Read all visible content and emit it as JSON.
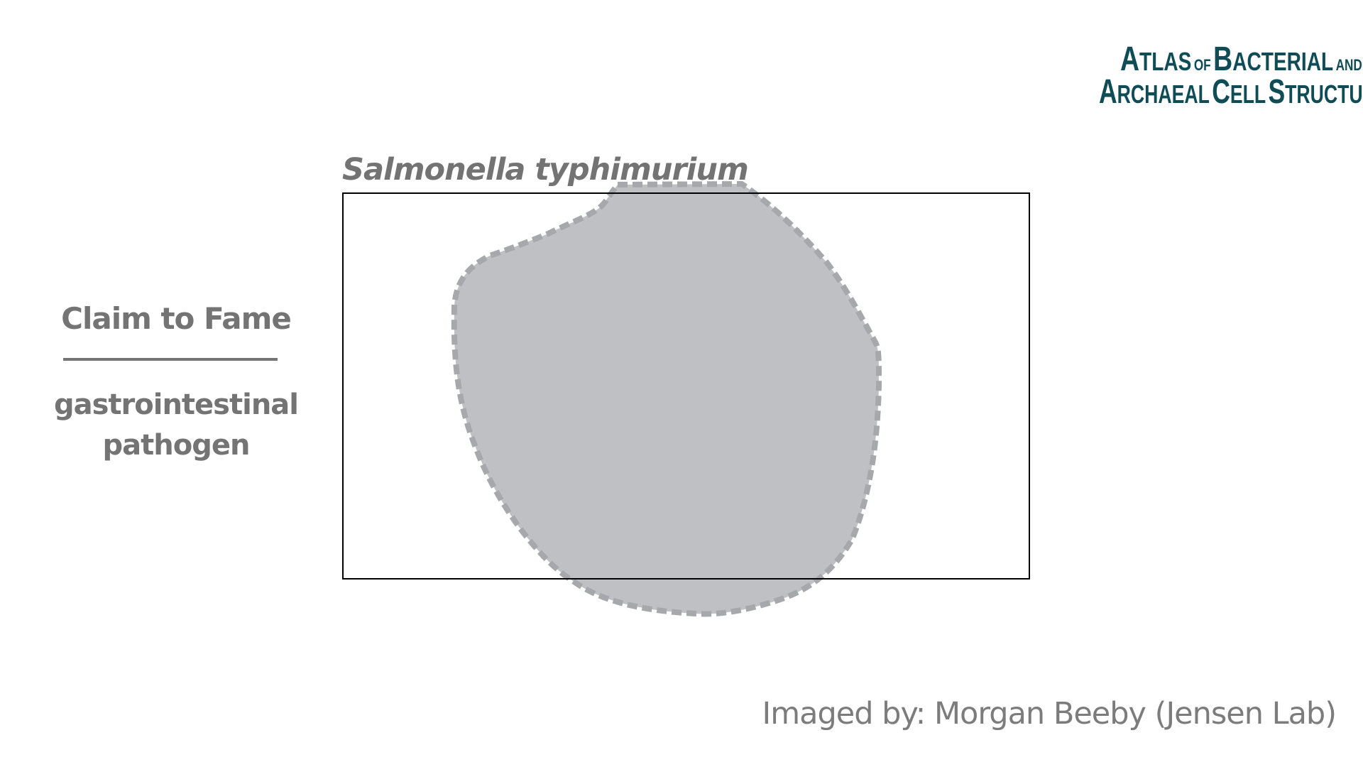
{
  "logo": {
    "line1": {
      "cap": "A",
      "word1": "TLAS",
      "of": "OF",
      "cap2": "B",
      "word2": "ACTERIAL",
      "and": "AND"
    },
    "line2": {
      "cap": "A",
      "word1": "RCHAEAL",
      "cap2": "C",
      "word2": "ELL",
      "cap3": "S",
      "word3": "TRUCTURE"
    }
  },
  "organism": {
    "name": "Salmonella typhimurium"
  },
  "claim": {
    "heading": "Claim to Fame",
    "text_line1": "gastrointestinal",
    "text_line2": "pathogen"
  },
  "credit": "Imaged by: Morgan Beeby (Jensen Lab)",
  "colors": {
    "text_gray": "#747474",
    "logo_teal": "#0f4c55",
    "cell_fill": "#bfc0c3",
    "cell_outline": "#a7a8ab",
    "frame_border": "#000000"
  }
}
